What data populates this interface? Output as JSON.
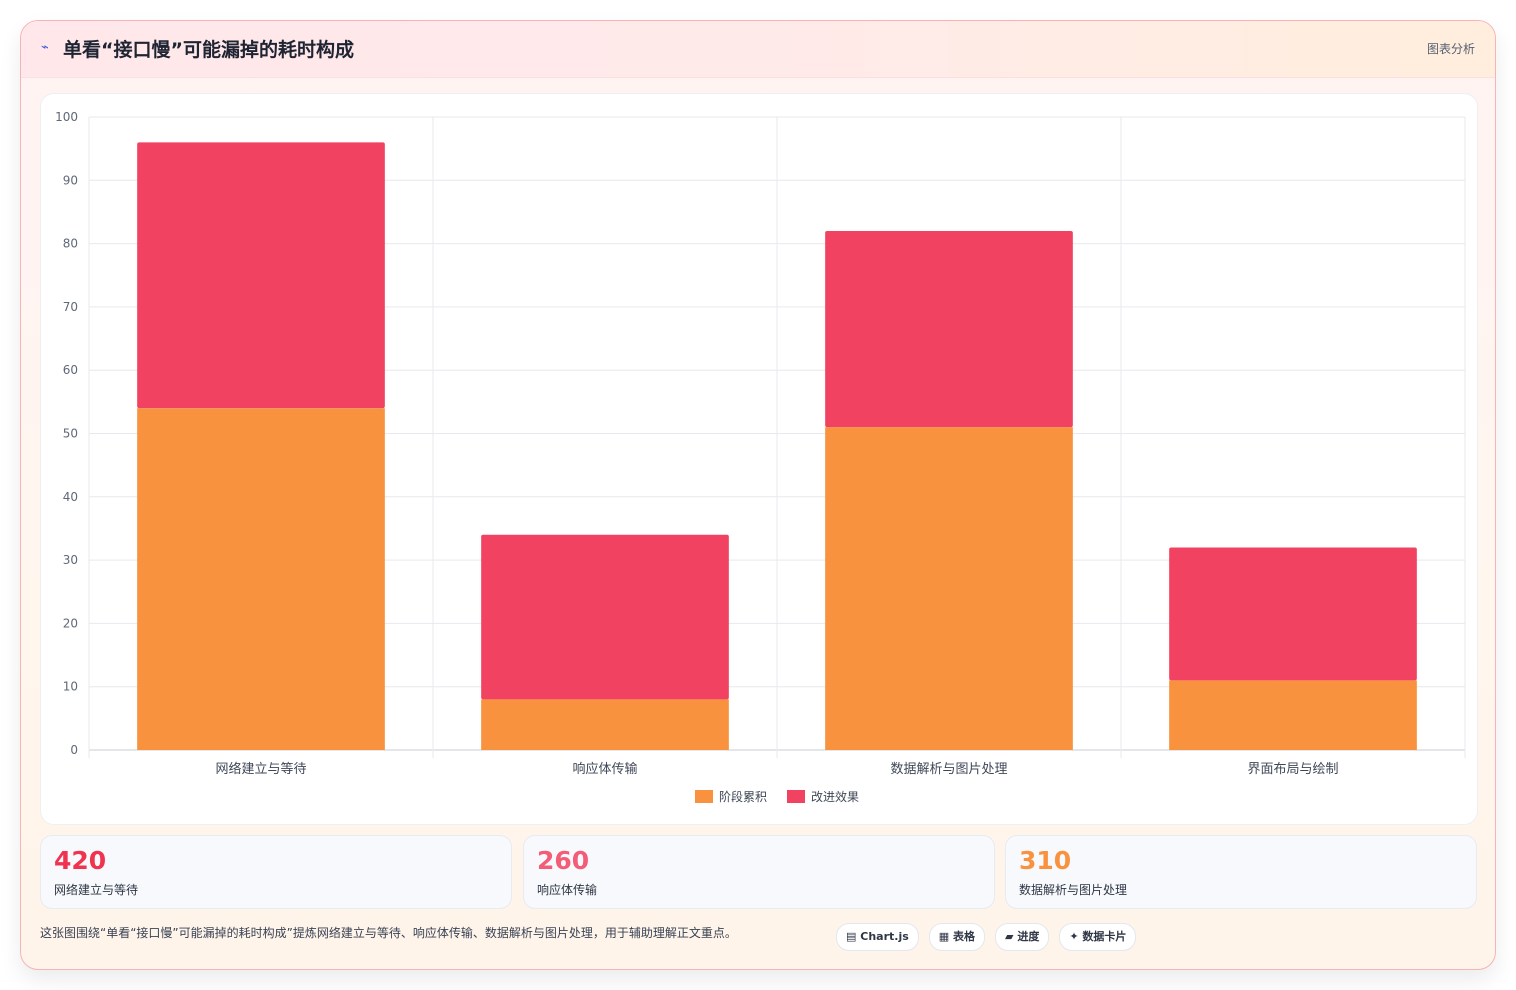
{
  "header": {
    "icon": "chart-line-icon",
    "title": "单看“接口慢”可能漏掉的耗时构成",
    "tag": "图表分析"
  },
  "chart_data": {
    "type": "bar",
    "stacked": true,
    "categories": [
      "网络建立与等待",
      "响应体传输",
      "数据解析与图片处理",
      "界面布局与绘制"
    ],
    "series": [
      {
        "name": "阶段累积",
        "color": "#f9923f",
        "values": [
          54,
          8,
          51,
          11
        ]
      },
      {
        "name": "改进效果",
        "color": "#f24261",
        "values": [
          42,
          26,
          31,
          21
        ]
      }
    ],
    "ylim": [
      0,
      100
    ],
    "yticks": [
      0,
      10,
      20,
      30,
      40,
      50,
      60,
      70,
      80,
      90,
      100
    ],
    "grid": true,
    "legend_position": "bottom"
  },
  "stats": [
    {
      "value": "420",
      "label": "网络建立与等待",
      "color": "#f0344f"
    },
    {
      "value": "260",
      "label": "响应体传输",
      "color": "#f35d77"
    },
    {
      "value": "310",
      "label": "数据解析与图片处理",
      "color": "#f9923f"
    }
  ],
  "footer": {
    "text": "这张图围绕“单看“接口慢”可能漏掉的耗时构成”提炼网络建立与等待、响应体传输、数据解析与图片处理，用于辅助理解正文重点。",
    "chips": [
      {
        "icon": "chart-icon",
        "glyph": "▤",
        "label": "Chart.js"
      },
      {
        "icon": "table-icon",
        "glyph": "▦",
        "label": "表格"
      },
      {
        "icon": "progress-icon",
        "glyph": "▰",
        "label": "进度"
      },
      {
        "icon": "sparkle-icon",
        "glyph": "✦",
        "label": "数据卡片"
      }
    ]
  }
}
